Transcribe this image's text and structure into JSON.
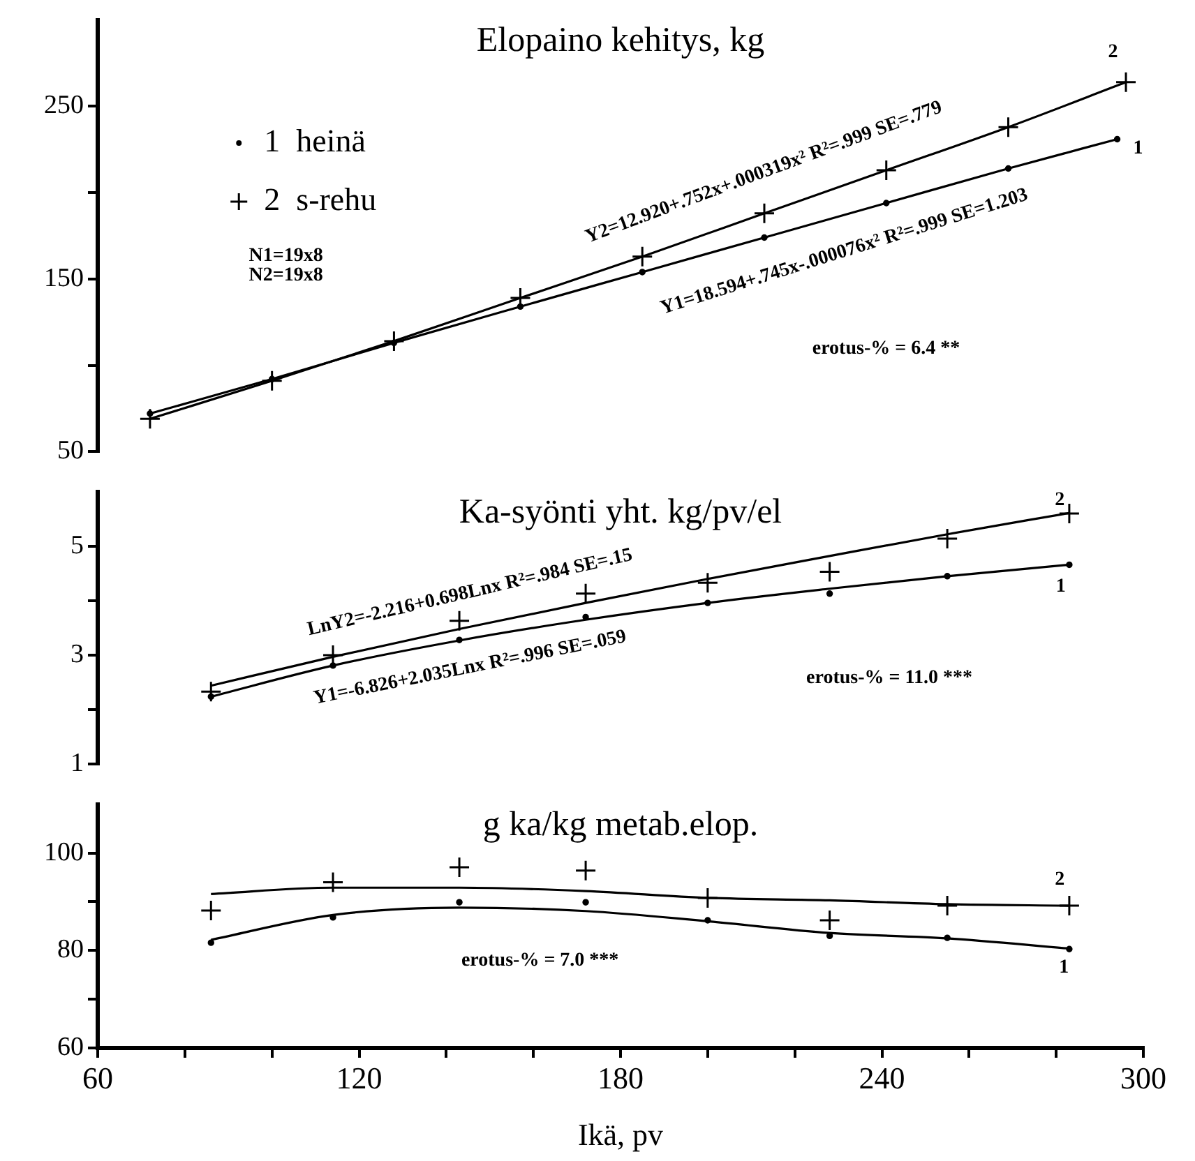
{
  "chart_data": [
    {
      "type": "scatter",
      "title": "Elopaino kehitys, kg",
      "xlim": [
        60,
        300
      ],
      "ylim": [
        50,
        300
      ],
      "yticks": [
        50,
        {
          "value": 100,
          "label": null
        },
        150,
        {
          "value": 200,
          "label": null
        },
        250
      ],
      "tick_labels": "y",
      "legend": "top left",
      "grid": false,
      "series": [
        {
          "name": "1  heinä",
          "type": "scatter",
          "marker": "circle",
          "color": "#000000",
          "x": [
            72,
            100,
            128,
            157,
            185,
            213,
            241,
            269,
            294
          ],
          "values": [
            72,
            92,
            113,
            134,
            154,
            174,
            194,
            214,
            231
          ]
        },
        {
          "name": "2  s-rehu",
          "type": "scatter",
          "marker": "cross",
          "color": "#000000",
          "x": [
            72,
            100,
            128,
            157,
            185,
            213,
            241,
            269,
            296
          ],
          "values": [
            69,
            91,
            114,
            139,
            163,
            188,
            213,
            238,
            264
          ]
        },
        {
          "type": "line",
          "marker": "none",
          "color": "#000000",
          "x": [
            72,
            100,
            128,
            157,
            185,
            213,
            241,
            269,
            294
          ],
          "values": [
            72,
            92,
            113,
            134,
            154,
            174,
            194,
            214,
            231
          ]
        },
        {
          "type": "line",
          "marker": "none",
          "color": "#000000",
          "x": [
            72,
            100,
            128,
            157,
            185,
            213,
            241,
            269,
            296
          ],
          "values": [
            69,
            91,
            114,
            139,
            163,
            188,
            213,
            238,
            264
          ]
        }
      ],
      "annotations": [
        "Y2=12.920+.752x+.000319x² R²=.999 SE=.779",
        "Y1=18.594+.745x-.000076x² R²=.999 SE=1.203",
        "2",
        "1",
        "N1=19x8",
        "N2=19x8",
        "erotus-% = 6.4 **"
      ]
    },
    {
      "type": "scatter",
      "title": "Ka-syönti yht. kg/pv/el",
      "xlim": [
        60,
        300
      ],
      "ylim": [
        1,
        6
      ],
      "yticks": [
        1,
        {
          "value": 2,
          "label": null
        },
        3,
        {
          "value": 4,
          "label": null
        },
        5
      ],
      "tick_labels": "y",
      "grid": false,
      "series": [
        {
          "type": "scatter",
          "marker": "circle",
          "color": "#000000",
          "x": [
            86,
            114,
            143,
            172,
            200,
            228,
            255,
            283
          ],
          "values": [
            2.24,
            2.81,
            3.28,
            3.7,
            3.96,
            4.13,
            4.45,
            4.66
          ]
        },
        {
          "type": "scatter",
          "marker": "cross",
          "color": "#000000",
          "x": [
            86,
            114,
            143,
            172,
            200,
            228,
            255,
            283
          ],
          "values": [
            2.33,
            3.0,
            3.63,
            4.13,
            4.33,
            4.53,
            5.14,
            5.6
          ]
        },
        {
          "type": "line",
          "marker": "none",
          "color": "#000000",
          "x": [
            86,
            114,
            143,
            172,
            200,
            228,
            255,
            283
          ],
          "values": [
            2.24,
            2.81,
            3.27,
            3.65,
            3.96,
            4.22,
            4.45,
            4.66
          ]
        },
        {
          "type": "line",
          "marker": "none",
          "color": "#000000",
          "x": [
            86,
            114,
            143,
            172,
            200,
            228,
            255,
            283
          ],
          "values": [
            2.44,
            2.97,
            3.48,
            3.96,
            4.4,
            4.82,
            5.22,
            5.61
          ]
        }
      ],
      "annotations": [
        "LnY2=-2.216+0.698Lnx R²=.984 SE=.15",
        "Y1=-6.826+2.035Lnx R²=.996 SE=.059",
        "2",
        "1",
        "erotus-% = 11.0 ***"
      ]
    },
    {
      "type": "scatter",
      "title": "g ka/kg metab.elop.",
      "xlabel": "Ikä, pv",
      "xlim": [
        60,
        300
      ],
      "xticks": [
        60,
        {
          "value": 80,
          "label": null
        },
        {
          "value": 100,
          "label": null
        },
        120,
        {
          "value": 140,
          "label": null
        },
        {
          "value": 160,
          "label": null
        },
        180,
        {
          "value": 200,
          "label": null
        },
        {
          "value": 220,
          "label": null
        },
        240,
        {
          "value": 260,
          "label": null
        },
        {
          "value": 280,
          "label": null
        },
        300
      ],
      "ylim": [
        60,
        110
      ],
      "yticks": [
        60,
        {
          "value": 70,
          "label": null
        },
        80,
        {
          "value": 90,
          "label": null
        },
        100
      ],
      "grid": false,
      "series": [
        {
          "type": "scatter",
          "marker": "circle",
          "color": "#000000",
          "x": [
            86,
            114,
            143,
            172,
            200,
            228,
            255,
            283
          ],
          "values": [
            81.6,
            86.8,
            89.9,
            89.9,
            86.2,
            83.0,
            82.6,
            80.3
          ]
        },
        {
          "type": "scatter",
          "marker": "cross",
          "color": "#000000",
          "x": [
            86,
            114,
            143,
            172,
            200,
            228,
            255,
            283
          ],
          "values": [
            88.2,
            94.0,
            97.1,
            96.4,
            90.8,
            86.2,
            89.2,
            89.2
          ]
        },
        {
          "type": "line",
          "marker": "none",
          "color": "#000000",
          "x": [
            86,
            114,
            143,
            172,
            200,
            228,
            255,
            283
          ],
          "values": [
            82.2,
            87.3,
            88.8,
            88.1,
            86.0,
            83.6,
            82.5,
            80.4
          ]
        },
        {
          "type": "line",
          "marker": "none",
          "color": "#000000",
          "x": [
            86,
            114,
            143,
            172,
            200,
            228,
            255,
            283
          ],
          "values": [
            91.6,
            92.9,
            92.9,
            92.2,
            90.8,
            90.3,
            89.5,
            89.2
          ]
        }
      ],
      "annotations": [
        "2",
        "1",
        "erotus-% = 7.0 ***"
      ]
    }
  ]
}
